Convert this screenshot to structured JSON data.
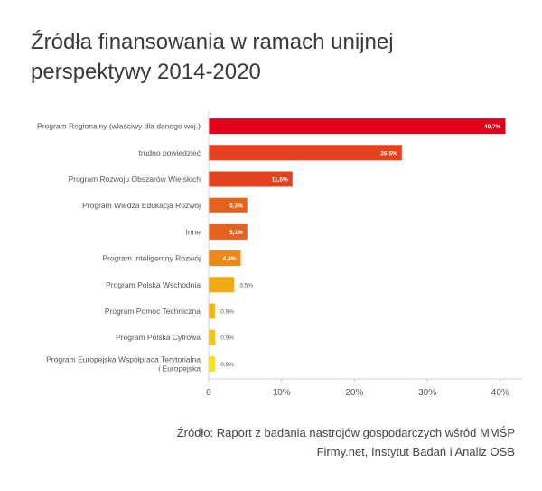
{
  "title_lines": [
    "Źródła finansowania w ramach unijnej",
    "perspektywy 2014-2020"
  ],
  "source_lines": [
    "Źródło: Raport z badania nastrojów gospodarczych wśród MMŚP",
    "Firmy.net, Instytut Badań i Analiz OSB"
  ],
  "chart_data": {
    "type": "bar",
    "orientation": "horizontal",
    "categories": [
      [
        "Program Regionalny (właściwy dla danego woj.)"
      ],
      [
        "trudno powiedzieć"
      ],
      [
        "Program Rozwoju Obszarów Wiejskich"
      ],
      [
        "Program Wiedza Edukacja Rozwój"
      ],
      [
        "Inne"
      ],
      [
        "Program Inteligentny Rozwój"
      ],
      [
        "Program Polska Wschodnia"
      ],
      [
        "Program Pomoc Techniczna"
      ],
      [
        "Program Polska Cyfrowa"
      ],
      [
        "Program Europejska Współpraca Terytorialna",
        "i Europejska"
      ]
    ],
    "values": [
      40.7,
      26.5,
      11.5,
      5.3,
      5.3,
      4.4,
      3.5,
      0.9,
      0.9,
      0.9
    ],
    "value_labels": [
      "40,7%",
      "26,5%",
      "11,5%",
      "5,3%",
      "5,3%",
      "4,4%",
      "3,5%",
      "0,9%",
      "0,9%",
      "0,9%"
    ],
    "bar_colors": [
      "#e2001a",
      "#e4421f",
      "#e4421f",
      "#e4621c",
      "#e4621c",
      "#eb8a19",
      "#efaa14",
      "#f0b810",
      "#f1c70c",
      "#f6e21c"
    ],
    "xlim": [
      0,
      43
    ],
    "xticks": [
      0,
      10,
      20,
      30,
      40
    ],
    "xtick_labels": [
      "0",
      "10%",
      "20%",
      "30%",
      "40%"
    ],
    "grid": false
  }
}
